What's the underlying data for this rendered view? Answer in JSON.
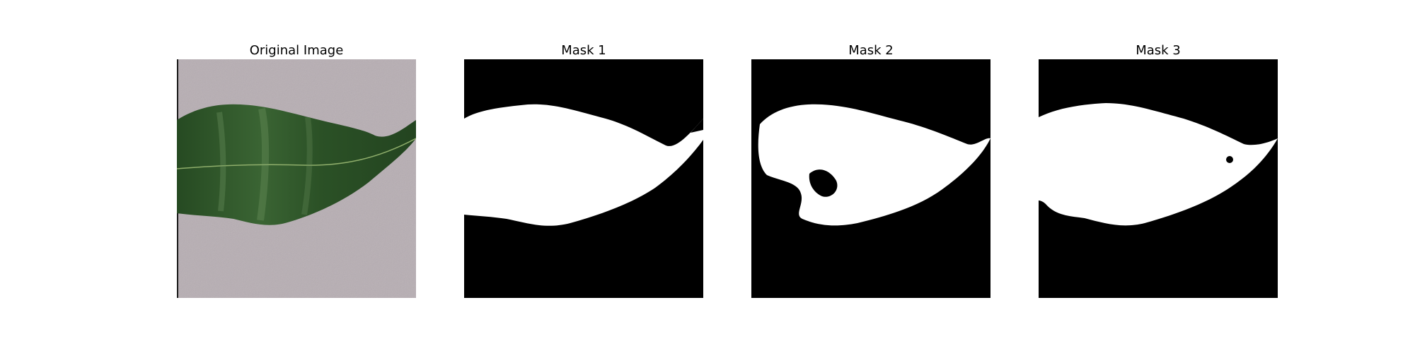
{
  "figure": {
    "panels": [
      {
        "title": "Original Image",
        "kind": "photo"
      },
      {
        "title": "Mask 1",
        "kind": "mask"
      },
      {
        "title": "Mask 2",
        "kind": "mask"
      },
      {
        "title": "Mask 3",
        "kind": "mask"
      }
    ],
    "colors": {
      "background": "#ffffff",
      "photo_background": "#b7aeb3",
      "leaf_dark": "#1f3f1c",
      "leaf_mid": "#2f5a2a",
      "leaf_light": "#6d9561",
      "mask_fg": "#ffffff",
      "mask_bg": "#000000"
    }
  }
}
